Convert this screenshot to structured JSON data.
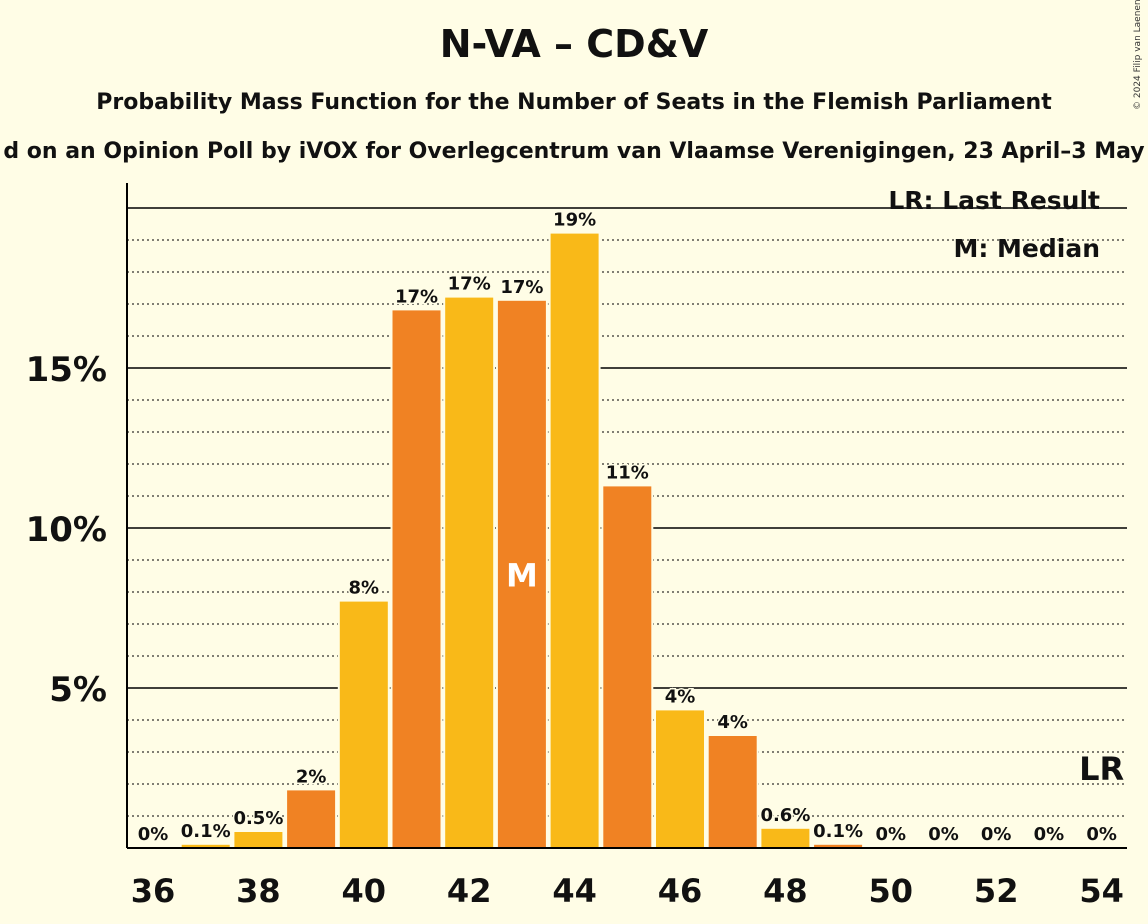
{
  "header": {
    "title": "N-VA – CD&V",
    "subtitle": "Probability Mass Function for the Number of Seats in the Flemish Parliament",
    "subtitle2": "d on an Opinion Poll by iVOX for Overlegcentrum van Vlaamse Verenigingen, 23 April–3 May",
    "copyright": "© 2024 Filip van Laenen"
  },
  "legend": {
    "last_result": "LR: Last Result",
    "median": "M: Median"
  },
  "colors": {
    "background": "#fffde6",
    "bar_yellow": "#f9b918",
    "bar_orange": "#f08223"
  },
  "chart_data": {
    "type": "bar",
    "title": "N-VA – CD&V",
    "xlabel": "",
    "ylabel": "",
    "categories": [
      36,
      37,
      38,
      39,
      40,
      41,
      42,
      43,
      44,
      45,
      46,
      47,
      48,
      49,
      50,
      51,
      52,
      53,
      54
    ],
    "values": [
      0,
      0.1,
      0.5,
      1.8,
      7.7,
      16.8,
      17.2,
      17.1,
      19.2,
      11.3,
      4.3,
      3.5,
      0.6,
      0.1,
      0,
      0,
      0,
      0,
      0
    ],
    "data_labels": [
      "0%",
      "0.1%",
      "0.5%",
      "2%",
      "8%",
      "17%",
      "17%",
      "17%",
      "19%",
      "11%",
      "4%",
      "4%",
      "0.6%",
      "0.1%",
      "0%",
      "0%",
      "0%",
      "0%",
      "0%"
    ],
    "bar_colors": [
      "yellow",
      "yellow",
      "yellow",
      "orange",
      "yellow",
      "orange",
      "yellow",
      "orange",
      "yellow",
      "orange",
      "yellow",
      "orange",
      "yellow",
      "orange",
      "yellow",
      "orange",
      "yellow",
      "orange",
      "yellow"
    ],
    "x_tick_labels": [
      "36",
      "38",
      "40",
      "42",
      "44",
      "46",
      "48",
      "50",
      "52",
      "54"
    ],
    "y_ticks": [
      5,
      10,
      15
    ],
    "y_tick_labels": [
      "5%",
      "10%",
      "15%"
    ],
    "ylim": [
      0,
      20.6
    ],
    "median_seat": 43,
    "median_label": "M",
    "last_result_seat": 54,
    "last_result_label": "LR",
    "grid": "solid at 5% steps, dotted at 1% steps"
  }
}
